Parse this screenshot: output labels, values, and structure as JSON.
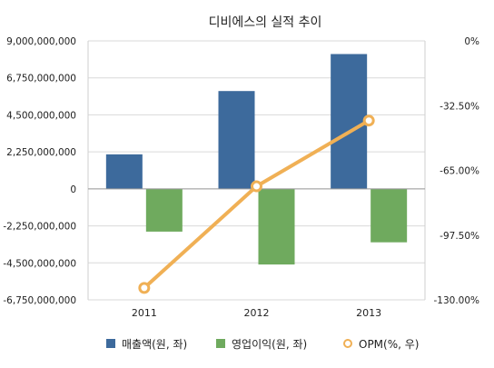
{
  "chart_data": {
    "type": "bar",
    "title": "디비에스의 실적 추이",
    "categories": [
      "2011",
      "2012",
      "2013"
    ],
    "y_left": {
      "lim": [
        -6750000000,
        9000000000
      ],
      "ticks": [
        9000000000,
        6750000000,
        4500000000,
        2250000000,
        0,
        -2250000000,
        -4500000000,
        -6750000000
      ],
      "tick_labels": [
        "9,000,000,000",
        "6,750,000,000",
        "4,500,000,000",
        "2,250,000,000",
        "0",
        "-2,250,000,000",
        "-4,500,000,000",
        "-6,750,000,000"
      ]
    },
    "y_right": {
      "lim": [
        -130,
        0
      ],
      "ticks": [
        0,
        -32.5,
        -65,
        -97.5,
        -130
      ],
      "tick_labels": [
        "0%",
        "-32.50%",
        "-65.00%",
        "-97.50%",
        "-130.00%"
      ]
    },
    "series": [
      {
        "name": "매출액(원, 좌)",
        "type": "bar",
        "axis": "left",
        "color": "#3d6a9c",
        "values": [
          2100000000,
          5950000000,
          8200000000
        ]
      },
      {
        "name": "영업이익(원, 좌)",
        "type": "bar",
        "axis": "left",
        "color": "#6faa5e",
        "values": [
          -2600000000,
          -4600000000,
          -3250000000
        ]
      },
      {
        "name": "OPM(%, 우)",
        "type": "line",
        "axis": "right",
        "color": "#f0b055",
        "values": [
          -124,
          -73,
          -40
        ]
      }
    ],
    "legend_position": "bottom",
    "grid": true
  }
}
